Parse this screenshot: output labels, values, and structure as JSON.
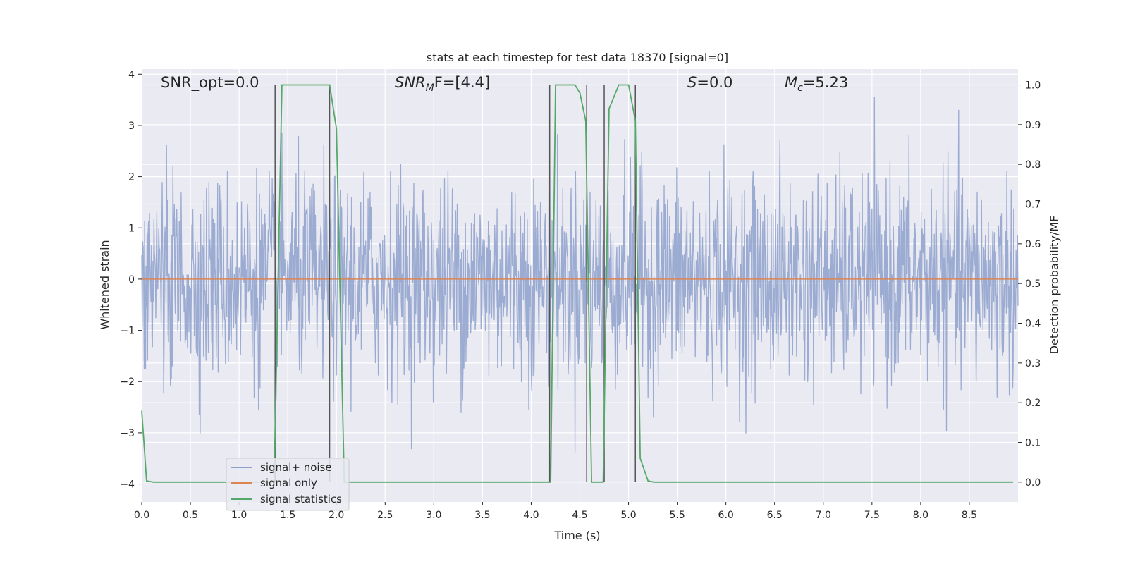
{
  "chart_data": {
    "type": "line",
    "title": "stats at each timestep for test data 18370 [signal=0]",
    "xlabel": "Time (s)",
    "ylabel_left": "Whitened strain",
    "ylabel_right": "Detection probability/MF",
    "xlim": [
      0,
      9.0
    ],
    "ylim_left": [
      -4.35,
      4.1
    ],
    "ylim_right": [
      -0.05,
      1.04
    ],
    "x_ticks": [
      "0.0",
      "0.5",
      "1.0",
      "1.5",
      "2.0",
      "2.5",
      "3.0",
      "3.5",
      "4.0",
      "4.5",
      "5.0",
      "5.5",
      "6.0",
      "6.5",
      "7.0",
      "7.5",
      "8.0",
      "8.5"
    ],
    "y_left_ticks": [
      "4",
      "3",
      "2",
      "1",
      "0",
      "−1",
      "−2",
      "−3",
      "−4"
    ],
    "y_right_ticks": [
      "1.0",
      "0.9",
      "0.8",
      "0.7",
      "0.6",
      "0.5",
      "0.4",
      "0.3",
      "0.2",
      "0.1",
      "0.0"
    ],
    "grid": true,
    "annotations": {
      "snr_opt": "SNR_opt=0.0",
      "snr_mf_main": "SNR",
      "snr_mf_sub": "M",
      "snr_mf_rest": "F=[4.4]",
      "s_main": "S",
      "s_rest": "=0.0",
      "mc_main": "M",
      "mc_sub": "c",
      "mc_rest": "=5.23"
    },
    "series": [
      {
        "name": "signal+ noise",
        "axis": "left",
        "color": "#8da0cb",
        "style": "noise",
        "sigma": 1.0,
        "sample_rate_hz": 200
      },
      {
        "name": "signal only",
        "axis": "left",
        "color": "#dd8452",
        "x": [
          0,
          9.0
        ],
        "y": [
          0,
          0
        ]
      },
      {
        "name": "signal statistics",
        "axis": "right",
        "color": "#55a868",
        "x": [
          0.0,
          0.05,
          0.12,
          1.36,
          1.44,
          1.93,
          2.0,
          2.08,
          4.2,
          4.25,
          4.45,
          4.5,
          4.56,
          4.62,
          4.74,
          4.8,
          4.9,
          5.0,
          5.07,
          5.12,
          5.2,
          5.26,
          8.95
        ],
        "y": [
          0.18,
          0.003,
          0.0,
          0.0,
          1.0,
          1.0,
          0.89,
          0.0,
          0.0,
          1.0,
          1.0,
          0.98,
          0.91,
          0.0,
          0.0,
          0.94,
          1.0,
          1.0,
          0.91,
          0.06,
          0.003,
          0.0,
          0.0
        ]
      }
    ],
    "vlines_x": [
      1.37,
      1.93,
      4.19,
      4.57,
      4.75,
      5.07
    ],
    "legend": {
      "placement": "lower-left",
      "entries": [
        "signal+ noise",
        "signal only",
        "signal statistics"
      ]
    },
    "colors": {
      "background": "#eaeaf2",
      "grid": "#ffffff",
      "noise": "#8da0cb",
      "signal": "#dd8452",
      "stats": "#55a868",
      "vline": "#555555"
    }
  }
}
